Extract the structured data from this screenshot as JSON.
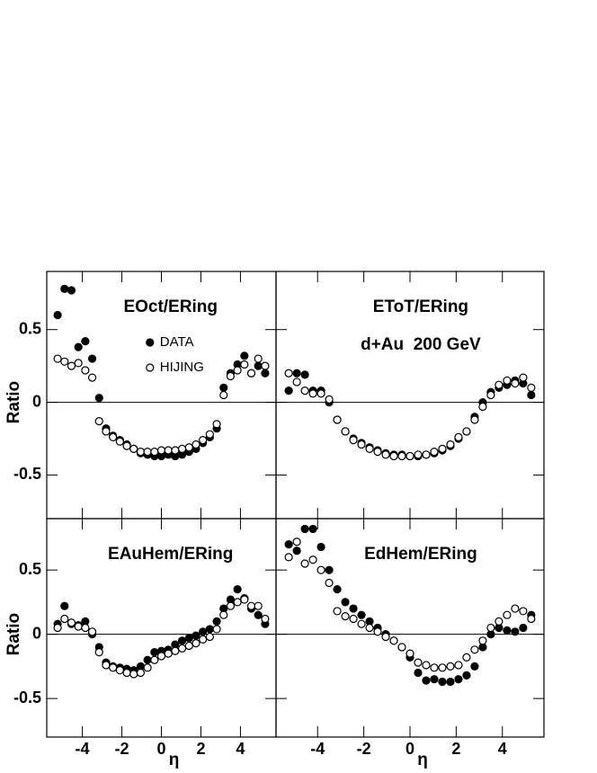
{
  "chart_data": [
    {
      "type": "scatter",
      "title": "EOct/ERing",
      "ylabel": "Ratio",
      "legend": "inside-left",
      "x": [
        -5.25,
        -4.9,
        -4.55,
        -4.2,
        -3.85,
        -3.5,
        -3.15,
        -2.8,
        -2.45,
        -2.1,
        -1.75,
        -1.4,
        -1.05,
        -0.7,
        -0.35,
        0,
        0.35,
        0.7,
        1.05,
        1.4,
        1.75,
        2.1,
        2.45,
        2.8,
        3.15,
        3.5,
        3.85,
        4.2,
        4.55,
        4.9,
        5.25
      ],
      "series": [
        {
          "name": "DATA",
          "color": "#000000",
          "marker": "filled",
          "values": [
            0.6,
            0.78,
            0.77,
            0.38,
            0.42,
            0.3,
            0.03,
            -0.18,
            -0.23,
            -0.26,
            -0.29,
            -0.32,
            -0.35,
            -0.36,
            -0.37,
            -0.37,
            -0.36,
            -0.37,
            -0.36,
            -0.34,
            -0.32,
            -0.28,
            -0.24,
            -0.18,
            0.1,
            0.2,
            0.26,
            0.32,
            0.2,
            0.25,
            0.2
          ]
        },
        {
          "name": "HIJING",
          "color": "#000000",
          "marker": "open",
          "values": [
            0.3,
            0.28,
            0.25,
            0.27,
            0.22,
            0.17,
            -0.13,
            -0.2,
            -0.24,
            -0.27,
            -0.3,
            -0.32,
            -0.34,
            -0.34,
            -0.34,
            -0.33,
            -0.33,
            -0.33,
            -0.32,
            -0.31,
            -0.29,
            -0.26,
            -0.22,
            -0.15,
            0.05,
            0.18,
            0.22,
            0.26,
            0.2,
            0.3,
            0.25
          ]
        }
      ],
      "xlim": [
        -5.8,
        5.8
      ],
      "ylim": [
        -0.8,
        0.9
      ],
      "xticks": [
        -4,
        -2,
        0,
        2,
        4
      ],
      "yticks": [
        -0.5,
        0,
        0.5
      ],
      "zero_line": true
    },
    {
      "type": "scatter",
      "title": "EToT/ERing",
      "annotation": "d+Au  200 GeV",
      "x": [
        -5.25,
        -4.9,
        -4.55,
        -4.2,
        -3.85,
        -3.5,
        -3.15,
        -2.8,
        -2.45,
        -2.1,
        -1.75,
        -1.4,
        -1.05,
        -0.7,
        -0.35,
        0,
        0.35,
        0.7,
        1.05,
        1.4,
        1.75,
        2.1,
        2.45,
        2.8,
        3.15,
        3.5,
        3.85,
        4.2,
        4.55,
        4.9,
        5.25
      ],
      "series": [
        {
          "color": "#000000",
          "marker": "filled",
          "values": [
            0.08,
            0.2,
            0.19,
            0.08,
            0.08,
            0.0,
            -0.12,
            -0.2,
            -0.25,
            -0.28,
            -0.31,
            -0.33,
            -0.35,
            -0.36,
            -0.36,
            -0.37,
            -0.37,
            -0.36,
            -0.35,
            -0.33,
            -0.3,
            -0.25,
            -0.2,
            -0.1,
            0.0,
            0.07,
            0.1,
            0.12,
            0.15,
            0.13,
            0.05
          ]
        },
        {
          "color": "#000000",
          "marker": "open",
          "values": [
            0.2,
            0.14,
            0.08,
            0.06,
            0.06,
            0.02,
            -0.12,
            -0.2,
            -0.26,
            -0.29,
            -0.32,
            -0.34,
            -0.36,
            -0.37,
            -0.37,
            -0.37,
            -0.36,
            -0.36,
            -0.34,
            -0.32,
            -0.29,
            -0.24,
            -0.2,
            -0.12,
            -0.03,
            0.05,
            0.12,
            0.15,
            0.13,
            0.17,
            0.1
          ]
        }
      ],
      "xlim": [
        -5.8,
        5.8
      ],
      "ylim": [
        -0.8,
        0.9
      ],
      "xticks": [
        -4,
        -2,
        0,
        2,
        4
      ],
      "yticks": [
        -0.5,
        0,
        0.5
      ],
      "zero_line": true
    },
    {
      "type": "scatter",
      "title": "EAuHem/ERing",
      "ylabel": "Ratio",
      "xlabel": "η",
      "x": [
        -5.25,
        -4.9,
        -4.55,
        -4.2,
        -3.85,
        -3.5,
        -3.15,
        -2.8,
        -2.45,
        -2.1,
        -1.75,
        -1.4,
        -1.05,
        -0.7,
        -0.35,
        0,
        0.35,
        0.7,
        1.05,
        1.4,
        1.75,
        2.1,
        2.45,
        2.8,
        3.15,
        3.5,
        3.85,
        4.2,
        4.55,
        4.9,
        5.25
      ],
      "series": [
        {
          "color": "#000000",
          "marker": "filled",
          "values": [
            0.08,
            0.22,
            0.08,
            0.07,
            0.1,
            0.0,
            -0.1,
            -0.22,
            -0.25,
            -0.26,
            -0.27,
            -0.28,
            -0.25,
            -0.2,
            -0.14,
            -0.13,
            -0.12,
            -0.08,
            -0.05,
            -0.03,
            -0.01,
            0.02,
            0.04,
            0.1,
            0.2,
            0.27,
            0.35,
            0.28,
            0.2,
            0.15,
            0.08
          ]
        },
        {
          "color": "#000000",
          "marker": "open",
          "values": [
            0.05,
            0.12,
            0.09,
            0.06,
            0.05,
            0.02,
            -0.14,
            -0.24,
            -0.26,
            -0.28,
            -0.3,
            -0.31,
            -0.3,
            -0.26,
            -0.2,
            -0.17,
            -0.15,
            -0.13,
            -0.11,
            -0.09,
            -0.07,
            -0.04,
            -0.02,
            0.04,
            0.15,
            0.22,
            0.25,
            0.27,
            0.22,
            0.22,
            0.12
          ]
        }
      ],
      "xlim": [
        -5.8,
        5.8
      ],
      "ylim": [
        -0.8,
        0.9
      ],
      "xticks": [
        -4,
        -2,
        0,
        2,
        4
      ],
      "yticks": [
        -0.5,
        0,
        0.5
      ],
      "zero_line": true
    },
    {
      "type": "scatter",
      "title": "EdHem/ERing",
      "xlabel": "η",
      "x": [
        -5.25,
        -4.9,
        -4.55,
        -4.2,
        -3.85,
        -3.5,
        -3.15,
        -2.8,
        -2.45,
        -2.1,
        -1.75,
        -1.4,
        -1.05,
        -0.7,
        -0.35,
        0,
        0.35,
        0.7,
        1.05,
        1.4,
        1.75,
        2.1,
        2.45,
        2.8,
        3.15,
        3.5,
        3.85,
        4.2,
        4.55,
        4.9,
        5.25
      ],
      "series": [
        {
          "color": "#000000",
          "marker": "filled",
          "values": [
            0.7,
            0.65,
            0.82,
            0.82,
            0.68,
            0.5,
            0.35,
            0.25,
            0.2,
            0.15,
            0.1,
            0.05,
            0.0,
            -0.05,
            -0.1,
            -0.18,
            -0.3,
            -0.36,
            -0.35,
            -0.37,
            -0.37,
            -0.35,
            -0.32,
            -0.25,
            -0.1,
            0.0,
            0.05,
            0.03,
            0.02,
            0.05,
            0.15
          ]
        },
        {
          "color": "#000000",
          "marker": "open",
          "values": [
            0.6,
            0.72,
            0.55,
            0.58,
            0.5,
            0.4,
            0.18,
            0.14,
            0.12,
            0.08,
            0.05,
            0.02,
            -0.02,
            -0.05,
            -0.1,
            -0.15,
            -0.22,
            -0.24,
            -0.26,
            -0.26,
            -0.25,
            -0.24,
            -0.18,
            -0.12,
            -0.05,
            0.05,
            0.1,
            0.15,
            0.2,
            0.18,
            0.12
          ]
        }
      ],
      "xlim": [
        -5.8,
        5.8
      ],
      "ylim": [
        -0.8,
        0.9
      ],
      "xticks": [
        -4,
        -2,
        0,
        2,
        4
      ],
      "yticks": [
        -0.5,
        0,
        0.5
      ],
      "zero_line": true
    }
  ]
}
